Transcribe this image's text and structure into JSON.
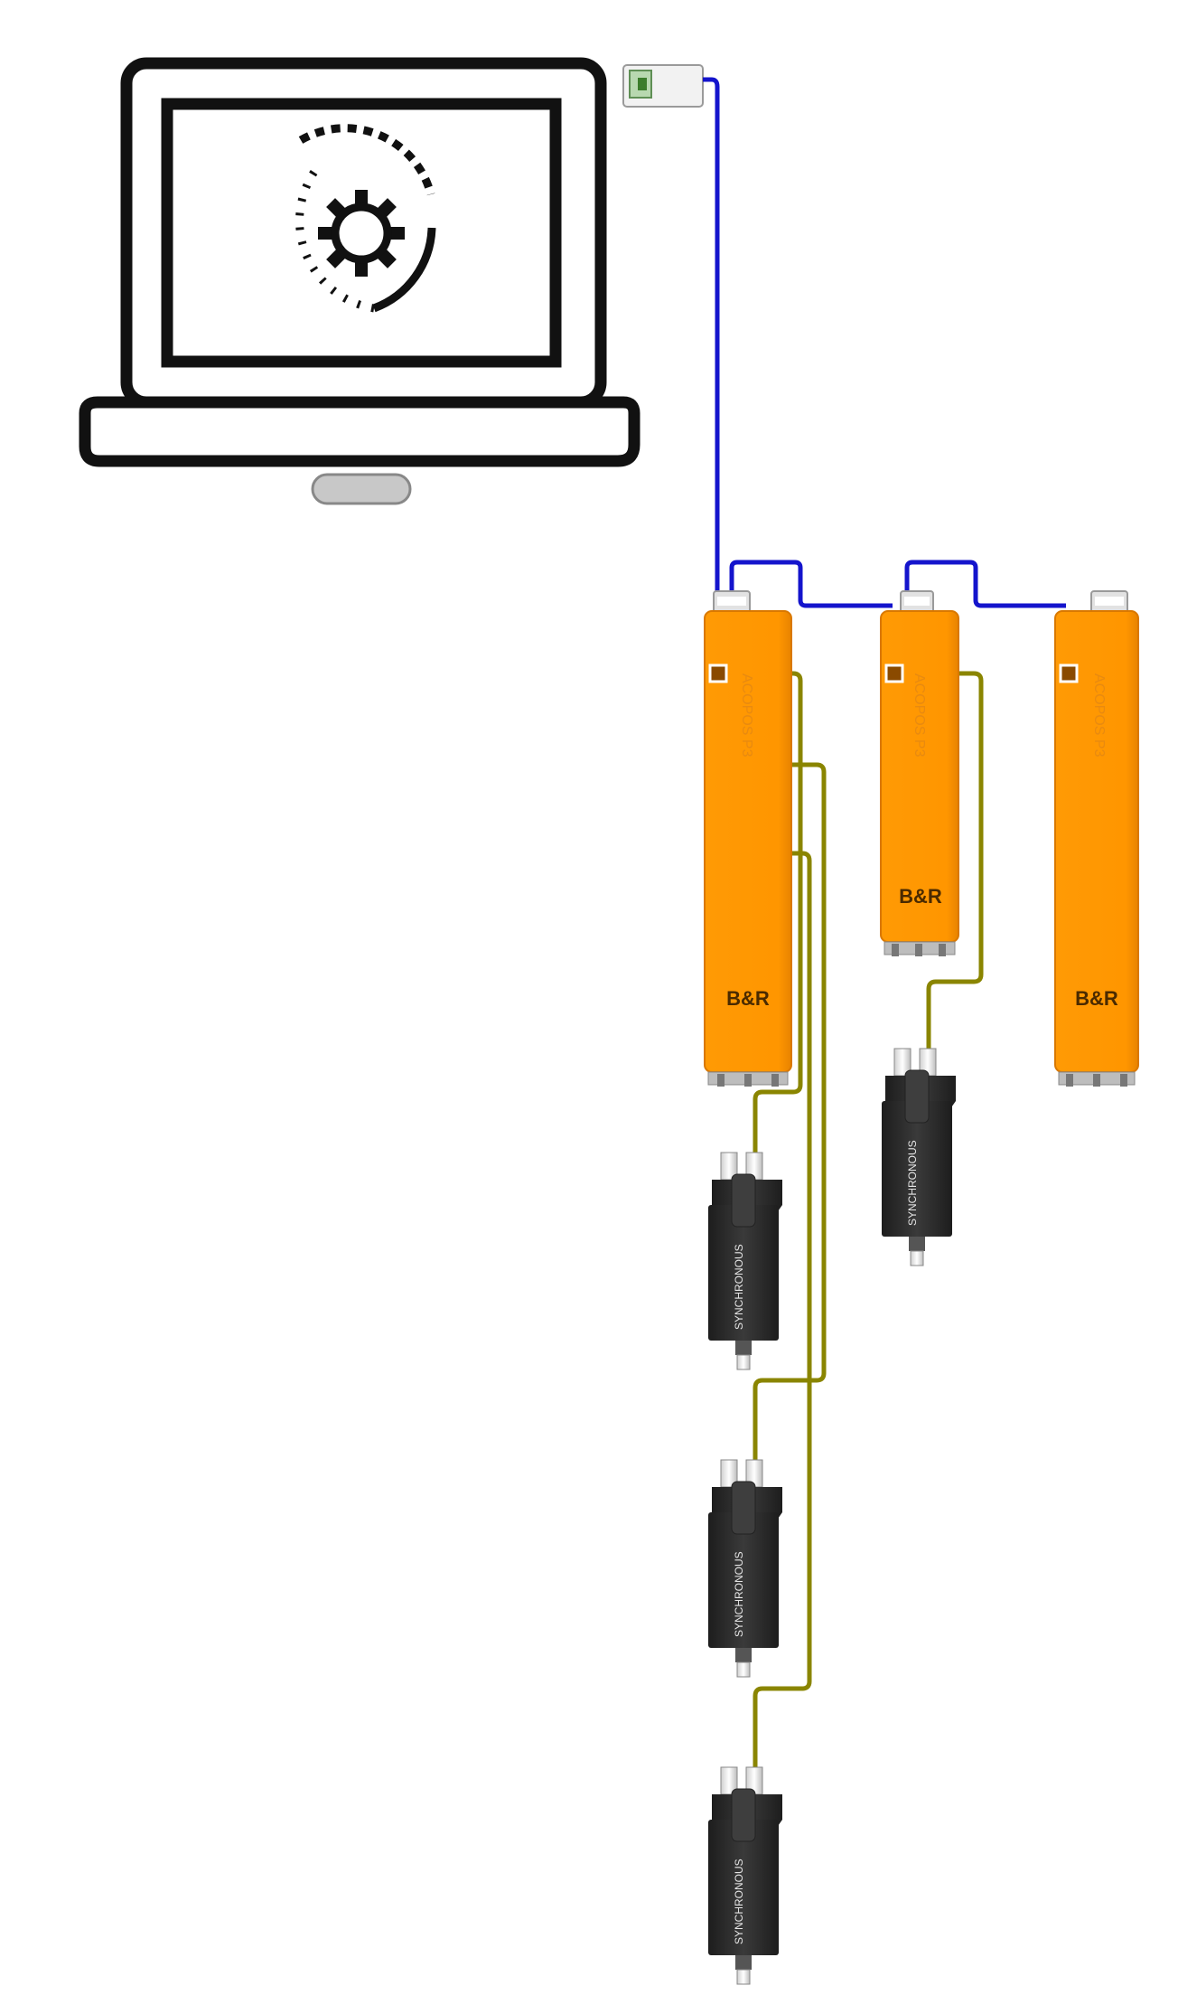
{
  "diagram": {
    "brand_logo": "B&R",
    "drive_model_text": "ACOPOS P3",
    "motor_label": "SYNCHRONOUS",
    "drives": [
      {
        "id": "drive-1",
        "axes": 3
      },
      {
        "id": "drive-2",
        "axes": 1
      },
      {
        "id": "drive-3",
        "axes": 0
      }
    ],
    "motors": [
      {
        "id": "motor-1",
        "drive": "drive-1"
      },
      {
        "id": "motor-2",
        "drive": "drive-1"
      },
      {
        "id": "motor-3",
        "drive": "drive-1"
      },
      {
        "id": "motor-4",
        "drive": "drive-2"
      }
    ],
    "colors": {
      "ethernet": "#1414cc",
      "motor_cable": "#8a8500",
      "drive_body": "#ff9600",
      "drive_shade": "#e07d00",
      "motor_body": "#2b2b2b",
      "laptop": "#111111"
    },
    "icons": [
      "laptop-icon",
      "gear-icon",
      "network-card-icon",
      "servo-drive-icon",
      "servo-motor-icon"
    ]
  }
}
